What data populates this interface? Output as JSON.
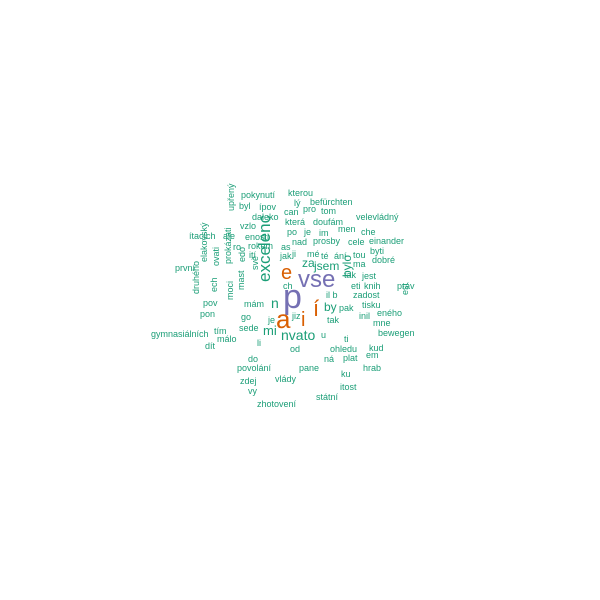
{
  "palette": {
    "green": "#1b9e77",
    "orange": "#d95f02",
    "purple": "#7570b3"
  },
  "words": [
    {
      "text": "p",
      "color": "purple"
    },
    {
      "text": "vse",
      "color": "purple"
    },
    {
      "text": "a",
      "color": "orange"
    },
    {
      "text": "e",
      "color": "orange"
    },
    {
      "text": "í",
      "color": "orange"
    },
    {
      "text": "i",
      "color": "orange"
    },
    {
      "text": "excelenc",
      "color": "green"
    },
    {
      "text": "n",
      "color": "green"
    },
    {
      "text": "nvato",
      "color": "green"
    },
    {
      "text": "mi",
      "color": "green"
    },
    {
      "text": "jsem",
      "color": "green"
    },
    {
      "text": "za",
      "color": "green"
    },
    {
      "text": "by",
      "color": "green"
    },
    {
      "text": "bylo",
      "color": "green"
    },
    {
      "text": "pokynutí",
      "color": "green"
    },
    {
      "text": "kterou",
      "color": "green"
    },
    {
      "text": "byl",
      "color": "green"
    },
    {
      "text": "ípov",
      "color": "green"
    },
    {
      "text": "lý",
      "color": "green"
    },
    {
      "text": "befürchten",
      "color": "green"
    },
    {
      "text": "can",
      "color": "green"
    },
    {
      "text": "pro",
      "color": "green"
    },
    {
      "text": "tom",
      "color": "green"
    },
    {
      "text": "daleko",
      "color": "green"
    },
    {
      "text": "velevládný",
      "color": "green"
    },
    {
      "text": "upřený",
      "color": "green"
    },
    {
      "text": "vzlo",
      "color": "green"
    },
    {
      "text": "která",
      "color": "green"
    },
    {
      "text": "doufám",
      "color": "green"
    },
    {
      "text": "men",
      "color": "green"
    },
    {
      "text": "po",
      "color": "green"
    },
    {
      "text": "je",
      "color": "green"
    },
    {
      "text": "im",
      "color": "green"
    },
    {
      "text": "che",
      "color": "green"
    },
    {
      "text": "ítacích",
      "color": "green"
    },
    {
      "text": "ale",
      "color": "green"
    },
    {
      "text": "enosti",
      "color": "green"
    },
    {
      "text": "nad",
      "color": "green"
    },
    {
      "text": "prosby",
      "color": "green"
    },
    {
      "text": "cele",
      "color": "green"
    },
    {
      "text": "einander",
      "color": "green"
    },
    {
      "text": "ro",
      "color": "green"
    },
    {
      "text": "rokem",
      "color": "green"
    },
    {
      "text": "as",
      "color": "green"
    },
    {
      "text": "byti",
      "color": "green"
    },
    {
      "text": "ití",
      "color": "green"
    },
    {
      "text": "jak",
      "color": "green"
    },
    {
      "text": "ji",
      "color": "green"
    },
    {
      "text": "mé",
      "color": "green"
    },
    {
      "text": "té",
      "color": "green"
    },
    {
      "text": "ání",
      "color": "green"
    },
    {
      "text": "tou",
      "color": "green"
    },
    {
      "text": "dobré",
      "color": "green"
    },
    {
      "text": "první",
      "color": "green"
    },
    {
      "text": "elakovský",
      "color": "green"
    },
    {
      "text": "edo",
      "color": "green"
    },
    {
      "text": "svě",
      "color": "green"
    },
    {
      "text": "ma",
      "color": "green"
    },
    {
      "text": "prokázati",
      "color": "green"
    },
    {
      "text": "ovati",
      "color": "green"
    },
    {
      "text": "tak",
      "color": "green"
    },
    {
      "text": "jest",
      "color": "green"
    },
    {
      "text": "ech",
      "color": "green"
    },
    {
      "text": "eti",
      "color": "green"
    },
    {
      "text": "knih",
      "color": "green"
    },
    {
      "text": "práv",
      "color": "green"
    },
    {
      "text": "druhého",
      "color": "green"
    },
    {
      "text": "moci",
      "color": "green"
    },
    {
      "text": "mast",
      "color": "green"
    },
    {
      "text": "zadost",
      "color": "green"
    },
    {
      "text": "est",
      "color": "green"
    },
    {
      "text": "ch",
      "color": "green"
    },
    {
      "text": "il b",
      "color": "green"
    },
    {
      "text": "pov",
      "color": "green"
    },
    {
      "text": "mám",
      "color": "green"
    },
    {
      "text": "tisku",
      "color": "green"
    },
    {
      "text": "pon",
      "color": "green"
    },
    {
      "text": "jiz",
      "color": "green"
    },
    {
      "text": "pak",
      "color": "green"
    },
    {
      "text": "eného",
      "color": "green"
    },
    {
      "text": "go",
      "color": "green"
    },
    {
      "text": "je",
      "color": "green"
    },
    {
      "text": "tak",
      "color": "green"
    },
    {
      "text": "inil",
      "color": "green"
    },
    {
      "text": "mne",
      "color": "green"
    },
    {
      "text": "gymnasiálních",
      "color": "green"
    },
    {
      "text": "tím",
      "color": "green"
    },
    {
      "text": "sede",
      "color": "green"
    },
    {
      "text": "bewegen",
      "color": "green"
    },
    {
      "text": "málo",
      "color": "green"
    },
    {
      "text": "li",
      "color": "green"
    },
    {
      "text": "dít",
      "color": "green"
    },
    {
      "text": "u",
      "color": "green"
    },
    {
      "text": "ti",
      "color": "green"
    },
    {
      "text": "kud",
      "color": "green"
    },
    {
      "text": "od",
      "color": "green"
    },
    {
      "text": "ohledu",
      "color": "green"
    },
    {
      "text": "em",
      "color": "green"
    },
    {
      "text": "do",
      "color": "green"
    },
    {
      "text": "ná",
      "color": "green"
    },
    {
      "text": "plat",
      "color": "green"
    },
    {
      "text": "povolání",
      "color": "green"
    },
    {
      "text": "pane",
      "color": "green"
    },
    {
      "text": "hrab",
      "color": "green"
    },
    {
      "text": "ku",
      "color": "green"
    },
    {
      "text": "zdej",
      "color": "green"
    },
    {
      "text": "vlády",
      "color": "green"
    },
    {
      "text": "itost",
      "color": "green"
    },
    {
      "text": "vy",
      "color": "green"
    },
    {
      "text": "státní",
      "color": "green"
    },
    {
      "text": "zhotovení",
      "color": "green"
    }
  ]
}
